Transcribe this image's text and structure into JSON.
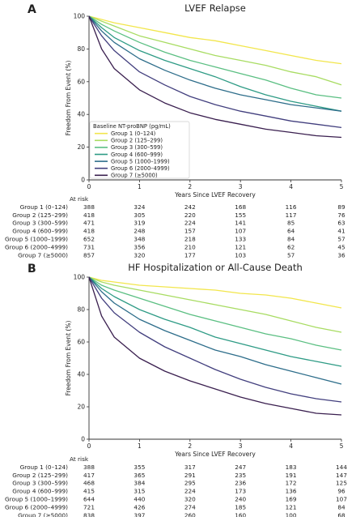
{
  "panels": [
    {
      "letter": "A",
      "chart_data": {
        "type": "line",
        "title": "LVEF Relapse",
        "xlabel": "Years Since LVEF Recovery",
        "ylabel": "Freedom From Event (%)",
        "xlim": [
          0,
          5
        ],
        "ylim": [
          0,
          100
        ],
        "xticks": [
          "0",
          "1",
          "2",
          "3",
          "4",
          "5"
        ],
        "yticks": [
          "0",
          "20",
          "40",
          "60",
          "80",
          "100"
        ],
        "grid": false,
        "legend_title": "Baseline NT-proBNP (pg/mL)",
        "legend_position": "lower-left",
        "series": [
          {
            "name": "Group 1 (0–124)",
            "color": "#f2e64c",
            "x": [
              0,
              0.25,
              0.5,
              1,
              1.5,
              2,
              2.5,
              3,
              3.5,
              4,
              4.5,
              5
            ],
            "y": [
              100,
              98,
              96,
              93,
              90,
              87,
              85,
              82,
              79,
              76,
              73,
              71
            ]
          },
          {
            "name": "Group 2 (125–299)",
            "color": "#a8dc62",
            "x": [
              0,
              0.25,
              0.5,
              1,
              1.5,
              2,
              2.5,
              3,
              3.5,
              4,
              4.5,
              5
            ],
            "y": [
              100,
              97,
              94,
              88,
              84,
              80,
              76,
              73,
              70,
              66,
              63,
              58
            ]
          },
          {
            "name": "Group 3 (300–599)",
            "color": "#5bbf82",
            "x": [
              0,
              0.25,
              0.5,
              1,
              1.5,
              2,
              2.5,
              3,
              3.5,
              4,
              4.5,
              5
            ],
            "y": [
              100,
              95,
              91,
              84,
              78,
              73,
              69,
              65,
              61,
              56,
              52,
              50
            ]
          },
          {
            "name": "Group 4 (600–999)",
            "color": "#2e9b85",
            "x": [
              0,
              0.25,
              0.5,
              1,
              1.5,
              2,
              2.5,
              3,
              3.5,
              4,
              4.5,
              5
            ],
            "y": [
              100,
              93,
              87,
              79,
              73,
              68,
              63,
              57,
              52,
              48,
              45,
              42
            ]
          },
          {
            "name": "Group 5 (1000–1999)",
            "color": "#2d6d8a",
            "x": [
              0,
              0.25,
              0.5,
              1,
              1.5,
              2,
              2.5,
              3,
              3.5,
              4,
              4.5,
              5
            ],
            "y": [
              100,
              91,
              84,
              74,
              67,
              61,
              56,
              52,
              49,
              46,
              44,
              42
            ]
          },
          {
            "name": "Group 6 (2000–4999)",
            "color": "#423f7e",
            "x": [
              0,
              0.25,
              0.5,
              1,
              1.5,
              2,
              2.5,
              3,
              3.5,
              4,
              4.5,
              5
            ],
            "y": [
              100,
              88,
              79,
              66,
              58,
              51,
              46,
              42,
              39,
              36,
              34,
              32
            ]
          },
          {
            "name": "Group 7 (≥5000)",
            "color": "#3a1f4f",
            "x": [
              0,
              0.25,
              0.5,
              1,
              1.5,
              2,
              2.5,
              3,
              3.5,
              4,
              4.5,
              5
            ],
            "y": [
              100,
              80,
              68,
              55,
              47,
              41,
              37,
              34,
              31,
              29,
              27,
              26
            ]
          }
        ]
      },
      "at_risk": {
        "header": "At risk",
        "rows": [
          {
            "label": "Group 1 (0–124)",
            "values": [
              "388",
              "324",
              "242",
              "168",
              "116",
              "89"
            ]
          },
          {
            "label": "Group 2 (125–299)",
            "values": [
              "418",
              "305",
              "220",
              "155",
              "117",
              "76"
            ]
          },
          {
            "label": "Group 3 (300–599)",
            "values": [
              "471",
              "319",
              "224",
              "141",
              "85",
              "63"
            ]
          },
          {
            "label": "Group 4 (600–999)",
            "values": [
              "418",
              "248",
              "157",
              "107",
              "64",
              "41"
            ]
          },
          {
            "label": "Group 5 (1000–1999)",
            "values": [
              "652",
              "348",
              "218",
              "133",
              "84",
              "57"
            ]
          },
          {
            "label": "Group 6 (2000–4999)",
            "values": [
              "731",
              "356",
              "210",
              "121",
              "62",
              "45"
            ]
          },
          {
            "label": "Group 7 (≥5000)",
            "values": [
              "857",
              "320",
              "177",
              "103",
              "57",
              "36"
            ]
          }
        ]
      }
    },
    {
      "letter": "B",
      "chart_data": {
        "type": "line",
        "title": "HF Hospitalization or All-Cause Death",
        "xlabel": "Years Since LVEF Recovery",
        "ylabel": "Freedom From Event (%)",
        "xlim": [
          0,
          5
        ],
        "ylim": [
          0,
          100
        ],
        "xticks": [
          "0",
          "1",
          "2",
          "3",
          "4",
          "5"
        ],
        "yticks": [
          "0",
          "20",
          "40",
          "60",
          "80",
          "100"
        ],
        "grid": false,
        "legend": "none",
        "series": [
          {
            "name": "Group 1 (0–124)",
            "color": "#f2e64c",
            "x": [
              0,
              0.25,
              0.5,
              1,
              1.5,
              2,
              2.5,
              3,
              3.5,
              4,
              4.5,
              5
            ],
            "y": [
              100,
              98,
              97,
              95,
              94,
              93,
              92,
              90,
              89,
              87,
              84,
              81
            ]
          },
          {
            "name": "Group 2 (125–299)",
            "color": "#a8dc62",
            "x": [
              0,
              0.25,
              0.5,
              1,
              1.5,
              2,
              2.5,
              3,
              3.5,
              4,
              4.5,
              5
            ],
            "y": [
              100,
              97,
              95,
              92,
              89,
              86,
              83,
              80,
              77,
              73,
              69,
              66
            ]
          },
          {
            "name": "Group 3 (300–599)",
            "color": "#5bbf82",
            "x": [
              0,
              0.25,
              0.5,
              1,
              1.5,
              2,
              2.5,
              3,
              3.5,
              4,
              4.5,
              5
            ],
            "y": [
              100,
              95,
              92,
              87,
              82,
              77,
              73,
              69,
              65,
              62,
              58,
              55
            ]
          },
          {
            "name": "Group 4 (600–999)",
            "color": "#2e9b85",
            "x": [
              0,
              0.25,
              0.5,
              1,
              1.5,
              2,
              2.5,
              3,
              3.5,
              4,
              4.5,
              5
            ],
            "y": [
              100,
              93,
              88,
              80,
              74,
              69,
              63,
              59,
              55,
              51,
              48,
              45
            ]
          },
          {
            "name": "Group 5 (1000–1999)",
            "color": "#2d6d8a",
            "x": [
              0,
              0.25,
              0.5,
              1,
              1.5,
              2,
              2.5,
              3,
              3.5,
              4,
              4.5,
              5
            ],
            "y": [
              100,
              91,
              84,
              74,
              67,
              61,
              55,
              51,
              46,
              42,
              38,
              34
            ]
          },
          {
            "name": "Group 6 (2000–4999)",
            "color": "#423f7e",
            "x": [
              0,
              0.25,
              0.5,
              1,
              1.5,
              2,
              2.5,
              3,
              3.5,
              4,
              4.5,
              5
            ],
            "y": [
              100,
              87,
              78,
              66,
              57,
              50,
              43,
              37,
              32,
              28,
              25,
              23
            ]
          },
          {
            "name": "Group 7 (≥5000)",
            "color": "#3a1f4f",
            "x": [
              0,
              0.25,
              0.5,
              1,
              1.5,
              2,
              2.5,
              3,
              3.5,
              4,
              4.5,
              5
            ],
            "y": [
              100,
              76,
              63,
              50,
              42,
              36,
              31,
              26,
              22,
              19,
              16,
              15
            ]
          }
        ]
      },
      "at_risk": {
        "header": "At risk",
        "rows": [
          {
            "label": "Group 1 (0–124)",
            "values": [
              "388",
              "355",
              "317",
              "247",
              "183",
              "144"
            ]
          },
          {
            "label": "Group 2 (125–299)",
            "values": [
              "417",
              "365",
              "291",
              "235",
              "191",
              "147"
            ]
          },
          {
            "label": "Group 3 (300–599)",
            "values": [
              "468",
              "384",
              "295",
              "236",
              "172",
              "125"
            ]
          },
          {
            "label": "Group 4 (600–999)",
            "values": [
              "415",
              "315",
              "224",
              "173",
              "136",
              "96"
            ]
          },
          {
            "label": "Group 5 (1000–1999)",
            "values": [
              "644",
              "440",
              "320",
              "240",
              "169",
              "107"
            ]
          },
          {
            "label": "Group 6 (2000–4999)",
            "values": [
              "721",
              "426",
              "274",
              "185",
              "121",
              "84"
            ]
          },
          {
            "label": "Group 7 (≥5000)",
            "values": [
              "838",
              "397",
              "260",
              "160",
              "100",
              "68"
            ]
          }
        ]
      }
    }
  ]
}
